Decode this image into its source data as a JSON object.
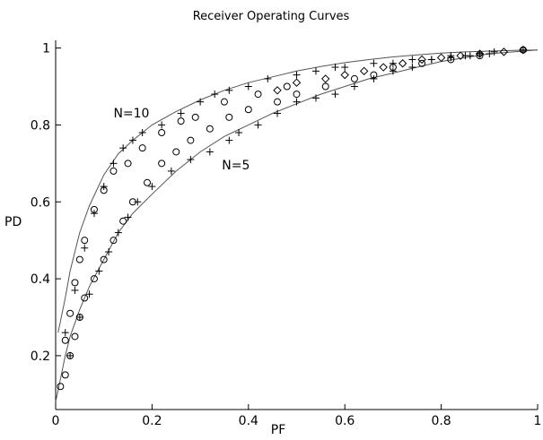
{
  "chart_data": {
    "type": "scatter",
    "title": "Receiver Operating Curves",
    "xlabel": "PF",
    "ylabel": "PD",
    "xlim": [
      0,
      1
    ],
    "ylim": [
      0.06,
      1.02
    ],
    "x_ticks": [
      {
        "value": 0,
        "label": "0"
      },
      {
        "value": 0.2,
        "label": "0.2"
      },
      {
        "value": 0.4,
        "label": "0.4"
      },
      {
        "value": 0.6,
        "label": "0.6"
      },
      {
        "value": 0.8,
        "label": "0.8"
      },
      {
        "value": 1,
        "label": "1"
      }
    ],
    "y_ticks": [
      {
        "value": 0.2,
        "label": "0.2"
      },
      {
        "value": 0.4,
        "label": "0.4"
      },
      {
        "value": 0.6,
        "label": "0.6"
      },
      {
        "value": 0.8,
        "label": "0.8"
      },
      {
        "value": 1,
        "label": "1"
      }
    ],
    "annotations": [
      {
        "text": "N=10",
        "x": 0.12,
        "y": 0.82
      },
      {
        "text": "N=5",
        "x": 0.345,
        "y": 0.685
      }
    ],
    "grid": false,
    "curves": [
      {
        "color": "#555555",
        "x": [
          0.005,
          0.01,
          0.02,
          0.03,
          0.05,
          0.07,
          0.1,
          0.13,
          0.16,
          0.2,
          0.25,
          0.3,
          0.35,
          0.4,
          0.45,
          0.5,
          0.55,
          0.6,
          0.65,
          0.7,
          0.75,
          0.8,
          0.85,
          0.9,
          0.95,
          1.0
        ],
        "y": [
          0.26,
          0.29,
          0.35,
          0.42,
          0.52,
          0.59,
          0.67,
          0.725,
          0.76,
          0.8,
          0.835,
          0.865,
          0.89,
          0.91,
          0.925,
          0.94,
          0.952,
          0.962,
          0.97,
          0.977,
          0.982,
          0.987,
          0.99,
          0.992,
          0.994,
          0.995
        ]
      },
      {
        "color": "#555555",
        "x": [
          0.0,
          0.01,
          0.02,
          0.03,
          0.05,
          0.07,
          0.1,
          0.13,
          0.16,
          0.2,
          0.25,
          0.3,
          0.35,
          0.4,
          0.45,
          0.5,
          0.55,
          0.6,
          0.65,
          0.7,
          0.75,
          0.8,
          0.85,
          0.9,
          0.95,
          1.0
        ],
        "y": [
          0.08,
          0.14,
          0.2,
          0.25,
          0.32,
          0.38,
          0.45,
          0.52,
          0.57,
          0.62,
          0.68,
          0.73,
          0.77,
          0.8,
          0.83,
          0.855,
          0.88,
          0.9,
          0.92,
          0.935,
          0.95,
          0.965,
          0.975,
          0.985,
          0.99,
          0.995
        ]
      }
    ],
    "series": [
      {
        "marker": "plus",
        "x": [
          0.02,
          0.04,
          0.06,
          0.08,
          0.1,
          0.12,
          0.14,
          0.16,
          0.18,
          0.22,
          0.26,
          0.3,
          0.33,
          0.36,
          0.4,
          0.44,
          0.5,
          0.54,
          0.58,
          0.6,
          0.66,
          0.7,
          0.74,
          0.78,
          0.82,
          0.85,
          0.88,
          0.91,
          0.97,
          0.03,
          0.05,
          0.07,
          0.09,
          0.11,
          0.13,
          0.15,
          0.17,
          0.2,
          0.24,
          0.28,
          0.32,
          0.36,
          0.38,
          0.42,
          0.46,
          0.5,
          0.54,
          0.58,
          0.62,
          0.66,
          0.7,
          0.74,
          0.78,
          0.82,
          0.86,
          0.9
        ],
        "y": [
          0.26,
          0.37,
          0.48,
          0.57,
          0.64,
          0.7,
          0.74,
          0.76,
          0.78,
          0.8,
          0.83,
          0.86,
          0.88,
          0.89,
          0.9,
          0.92,
          0.93,
          0.94,
          0.95,
          0.95,
          0.96,
          0.96,
          0.97,
          0.97,
          0.98,
          0.98,
          0.985,
          0.99,
          0.995,
          0.2,
          0.3,
          0.36,
          0.42,
          0.47,
          0.52,
          0.56,
          0.6,
          0.64,
          0.68,
          0.71,
          0.73,
          0.76,
          0.78,
          0.8,
          0.83,
          0.86,
          0.87,
          0.88,
          0.9,
          0.92,
          0.94,
          0.95,
          0.97,
          0.975,
          0.98,
          0.985
        ]
      },
      {
        "marker": "circle",
        "x": [
          0.01,
          0.02,
          0.03,
          0.04,
          0.05,
          0.06,
          0.08,
          0.1,
          0.12,
          0.14,
          0.16,
          0.19,
          0.22,
          0.25,
          0.28,
          0.32,
          0.36,
          0.4,
          0.46,
          0.5,
          0.56,
          0.62,
          0.66,
          0.7,
          0.76,
          0.82,
          0.88,
          0.97,
          0.02,
          0.03,
          0.04,
          0.05,
          0.06,
          0.08,
          0.1,
          0.12,
          0.15,
          0.18,
          0.22,
          0.26,
          0.29,
          0.35,
          0.42,
          0.48
        ],
        "y": [
          0.12,
          0.15,
          0.2,
          0.25,
          0.3,
          0.35,
          0.4,
          0.45,
          0.5,
          0.55,
          0.6,
          0.65,
          0.7,
          0.73,
          0.76,
          0.79,
          0.82,
          0.84,
          0.86,
          0.88,
          0.9,
          0.92,
          0.93,
          0.95,
          0.96,
          0.97,
          0.98,
          0.995,
          0.24,
          0.31,
          0.39,
          0.45,
          0.5,
          0.58,
          0.63,
          0.68,
          0.7,
          0.74,
          0.78,
          0.81,
          0.82,
          0.86,
          0.88,
          0.9
        ]
      },
      {
        "marker": "diamond",
        "x": [
          0.46,
          0.5,
          0.56,
          0.6,
          0.64,
          0.68,
          0.72,
          0.76,
          0.8,
          0.84,
          0.88,
          0.93,
          0.97
        ],
        "y": [
          0.89,
          0.91,
          0.92,
          0.93,
          0.94,
          0.95,
          0.96,
          0.97,
          0.975,
          0.98,
          0.985,
          0.99,
          0.995
        ]
      }
    ]
  }
}
